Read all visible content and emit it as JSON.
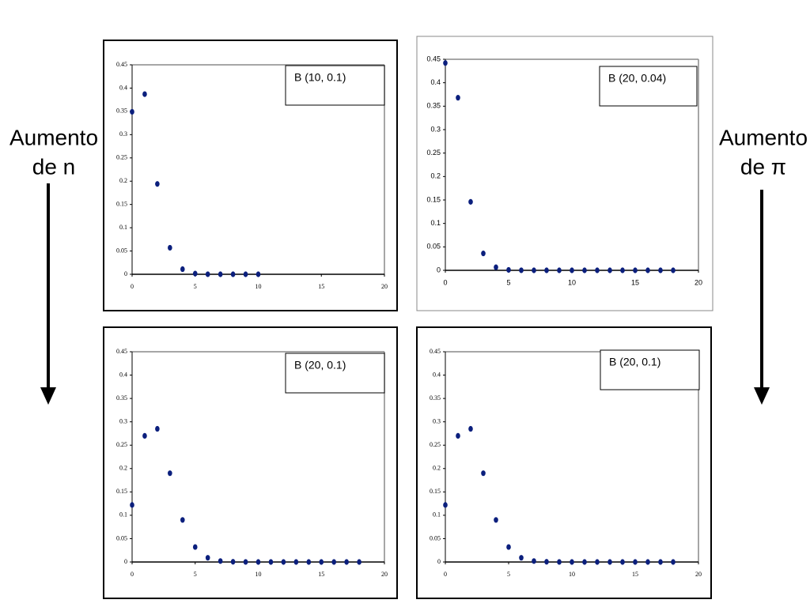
{
  "side_labels": {
    "left": [
      "Aumento",
      "de n"
    ],
    "right": [
      "Aumento",
      "de π"
    ]
  },
  "chart_data": [
    {
      "type": "scatter",
      "title": "B (10, 0.1)",
      "color": "#0b1f7d",
      "x": [
        0,
        1,
        2,
        3,
        4,
        5,
        6,
        7,
        8,
        9,
        10
      ],
      "values": [
        0.349,
        0.387,
        0.194,
        0.057,
        0.011,
        0.0015,
        0.0001,
        0,
        0,
        0,
        0
      ],
      "xlim": [
        0,
        20
      ],
      "xticks": [
        0,
        5,
        10,
        15,
        20
      ],
      "ylim": [
        0,
        0.45
      ],
      "yticks": [
        0,
        0.05,
        0.1,
        0.15,
        0.2,
        0.25,
        0.3,
        0.35,
        0.4,
        0.45
      ]
    },
    {
      "type": "scatter",
      "title": "B (20, 0.04)",
      "color": "#0b1f7d",
      "x": [
        0,
        1,
        2,
        3,
        4,
        5,
        6,
        7,
        8,
        9,
        10,
        11,
        12,
        13,
        14,
        15,
        16,
        17,
        18
      ],
      "values": [
        0.442,
        0.368,
        0.146,
        0.036,
        0.0065,
        0.0009,
        0.0001,
        0,
        0,
        0,
        0,
        0,
        0,
        0,
        0,
        0,
        0,
        0,
        0
      ],
      "xlim": [
        0,
        20
      ],
      "xticks": [
        0,
        5,
        10,
        15,
        20
      ],
      "ylim": [
        0,
        0.45
      ],
      "yticks": [
        0,
        0.05,
        0.1,
        0.15,
        0.2,
        0.25,
        0.3,
        0.35,
        0.4,
        0.45
      ]
    },
    {
      "type": "scatter",
      "title": "B (20, 0.1)",
      "color": "#0b1f7d",
      "x": [
        0,
        1,
        2,
        3,
        4,
        5,
        6,
        7,
        8,
        9,
        10,
        11,
        12,
        13,
        14,
        15,
        16,
        17,
        18
      ],
      "values": [
        0.122,
        0.27,
        0.285,
        0.19,
        0.09,
        0.032,
        0.009,
        0.002,
        0.0004,
        0.0001,
        0,
        0,
        0,
        0,
        0,
        0,
        0,
        0,
        0
      ],
      "xlim": [
        0,
        20
      ],
      "xticks": [
        0,
        5,
        10,
        15,
        20
      ],
      "ylim": [
        0,
        0.45
      ],
      "yticks": [
        0,
        0.05,
        0.1,
        0.15,
        0.2,
        0.25,
        0.3,
        0.35,
        0.4,
        0.45
      ]
    },
    {
      "type": "scatter",
      "title": "B (20, 0.1)",
      "color": "#0b1f7d",
      "x": [
        0,
        1,
        2,
        3,
        4,
        5,
        6,
        7,
        8,
        9,
        10,
        11,
        12,
        13,
        14,
        15,
        16,
        17,
        18
      ],
      "values": [
        0.122,
        0.27,
        0.285,
        0.19,
        0.09,
        0.032,
        0.009,
        0.002,
        0.0004,
        0.0001,
        0,
        0,
        0,
        0,
        0,
        0,
        0,
        0,
        0
      ],
      "xlim": [
        0,
        20
      ],
      "xticks": [
        0,
        5,
        10,
        15,
        20
      ],
      "ylim": [
        0,
        0.45
      ],
      "yticks": [
        0,
        0.05,
        0.1,
        0.15,
        0.2,
        0.25,
        0.3,
        0.35,
        0.4,
        0.45
      ]
    }
  ]
}
